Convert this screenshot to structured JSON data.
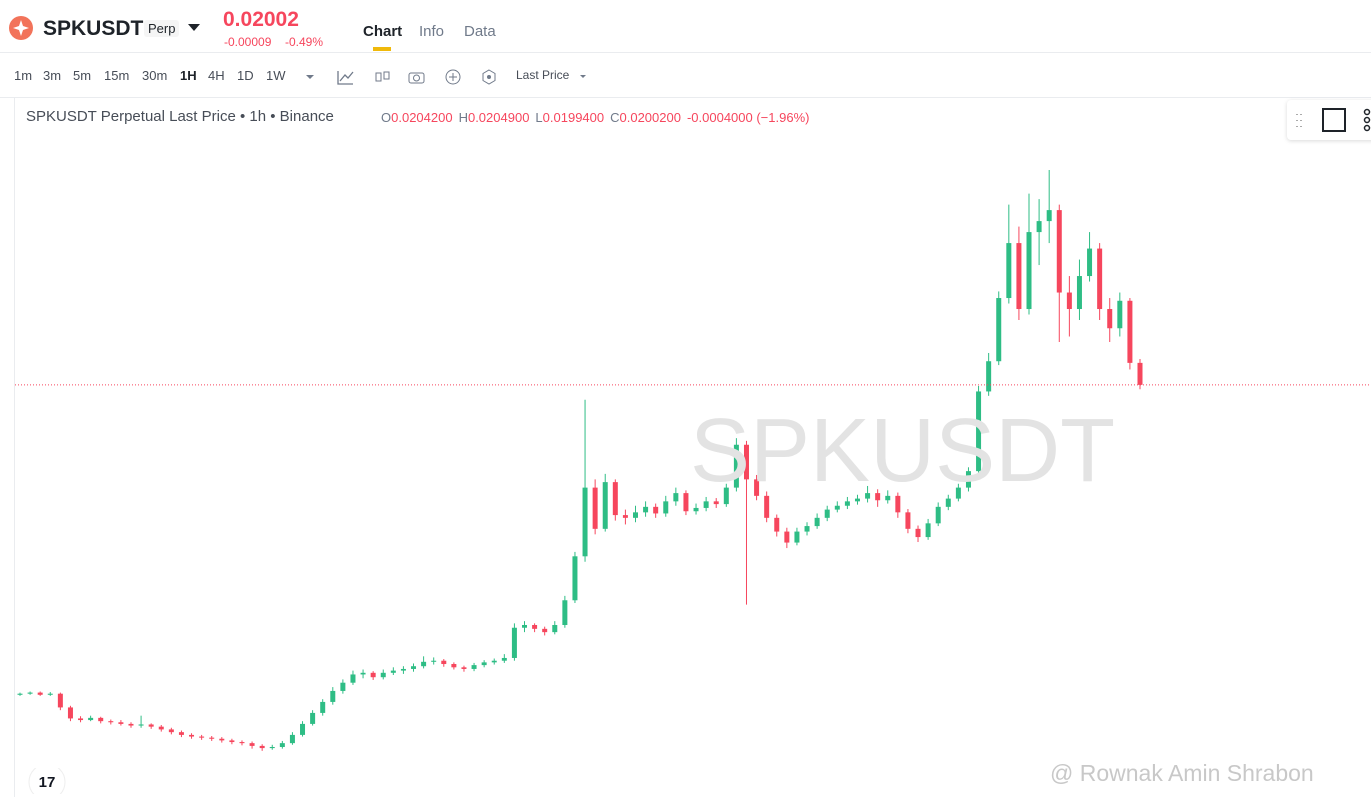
{
  "header": {
    "symbol": "SPKUSDT",
    "badge": "Perp",
    "last_price": "0.02002",
    "change": "-0.00009",
    "change_pct": "-0.49%"
  },
  "tabs": [
    "Chart",
    "Info",
    "Data"
  ],
  "intervals": [
    "1m",
    "3m",
    "5m",
    "15m",
    "30m",
    "1H",
    "4H",
    "1D",
    "1W"
  ],
  "price_type": "Last Price",
  "legend": {
    "title": "SPKUSDT Perpetual Last Price • 1h • Binance",
    "fields": [
      [
        "O",
        "0.0204200"
      ],
      [
        "H",
        "0.0204900"
      ],
      [
        "L",
        "0.0199400"
      ],
      [
        "C",
        "0.0200200"
      ]
    ],
    "change": "-0.0004000 (−1.96%)"
  },
  "watermark": "SPKUSDT",
  "credit": "@ Rownak Amin Shrabon",
  "chart_data": {
    "type": "candlestick",
    "ylim": [
      0.01252,
      0.02524
    ],
    "up_color": "#2ebd85",
    "down_color": "#f6465d",
    "candles": [
      [
        0.01438,
        0.01442,
        0.01436,
        0.0144
      ],
      [
        0.0144,
        0.01444,
        0.01438,
        0.01442
      ],
      [
        0.01442,
        0.01444,
        0.01436,
        0.01438
      ],
      [
        0.01438,
        0.01443,
        0.01436,
        0.0144
      ],
      [
        0.0144,
        0.01442,
        0.0141,
        0.01415
      ],
      [
        0.01415,
        0.01418,
        0.0139,
        0.01395
      ],
      [
        0.01395,
        0.01399,
        0.01388,
        0.01392
      ],
      [
        0.01392,
        0.014,
        0.0139,
        0.01396
      ],
      [
        0.01396,
        0.01398,
        0.01386,
        0.0139
      ],
      [
        0.0139,
        0.01393,
        0.01384,
        0.01388
      ],
      [
        0.01388,
        0.01392,
        0.01382,
        0.01385
      ],
      [
        0.01385,
        0.01388,
        0.01378,
        0.01382
      ],
      [
        0.01382,
        0.014,
        0.01378,
        0.01384
      ],
      [
        0.01384,
        0.01386,
        0.01376,
        0.0138
      ],
      [
        0.0138,
        0.01383,
        0.01371,
        0.01375
      ],
      [
        0.01375,
        0.01378,
        0.01366,
        0.0137
      ],
      [
        0.0137,
        0.01373,
        0.01361,
        0.01365
      ],
      [
        0.01365,
        0.01368,
        0.01358,
        0.01362
      ],
      [
        0.01362,
        0.01365,
        0.01356,
        0.0136
      ],
      [
        0.0136,
        0.01363,
        0.01354,
        0.01358
      ],
      [
        0.01358,
        0.01361,
        0.01351,
        0.01355
      ],
      [
        0.01355,
        0.01358,
        0.01348,
        0.01352
      ],
      [
        0.01352,
        0.01355,
        0.01346,
        0.0135
      ],
      [
        0.0135,
        0.01353,
        0.0134,
        0.01345
      ],
      [
        0.01345,
        0.01348,
        0.01336,
        0.01341
      ],
      [
        0.01341,
        0.01347,
        0.01338,
        0.01343
      ],
      [
        0.01343,
        0.01354,
        0.0134,
        0.0135
      ],
      [
        0.0135,
        0.0137,
        0.01347,
        0.01365
      ],
      [
        0.01365,
        0.0139,
        0.01362,
        0.01385
      ],
      [
        0.01385,
        0.0141,
        0.01382,
        0.01405
      ],
      [
        0.01405,
        0.0143,
        0.014,
        0.01425
      ],
      [
        0.01425,
        0.01452,
        0.0142,
        0.01445
      ],
      [
        0.01445,
        0.01466,
        0.0144,
        0.0146
      ],
      [
        0.0146,
        0.01482,
        0.01456,
        0.01475
      ],
      [
        0.01475,
        0.01484,
        0.01468,
        0.01478
      ],
      [
        0.01478,
        0.01481,
        0.01465,
        0.0147
      ],
      [
        0.0147,
        0.01484,
        0.01466,
        0.01478
      ],
      [
        0.01478,
        0.01488,
        0.01474,
        0.01482
      ],
      [
        0.01482,
        0.0149,
        0.01476,
        0.01485
      ],
      [
        0.01485,
        0.01495,
        0.0148,
        0.0149
      ],
      [
        0.0149,
        0.01508,
        0.01486,
        0.01498
      ],
      [
        0.01498,
        0.01506,
        0.01493,
        0.015
      ],
      [
        0.015,
        0.01503,
        0.01489,
        0.01494
      ],
      [
        0.01494,
        0.01497,
        0.01484,
        0.01488
      ],
      [
        0.01488,
        0.01491,
        0.0148,
        0.01485
      ],
      [
        0.01485,
        0.01496,
        0.01481,
        0.01492
      ],
      [
        0.01492,
        0.01501,
        0.01488,
        0.01497
      ],
      [
        0.01497,
        0.01504,
        0.01493,
        0.015
      ],
      [
        0.015,
        0.01512,
        0.01496,
        0.01505
      ],
      [
        0.01505,
        0.01568,
        0.015,
        0.0156
      ],
      [
        0.0156,
        0.01572,
        0.01552,
        0.01565
      ],
      [
        0.01565,
        0.01568,
        0.01552,
        0.01558
      ],
      [
        0.01558,
        0.01562,
        0.01546,
        0.01552
      ],
      [
        0.01552,
        0.01572,
        0.01548,
        0.01565
      ],
      [
        0.01565,
        0.01618,
        0.0156,
        0.0161
      ],
      [
        0.0161,
        0.01698,
        0.01605,
        0.0169
      ],
      [
        0.0169,
        0.01975,
        0.0168,
        0.01815
      ],
      [
        0.01815,
        0.0183,
        0.0173,
        0.0174
      ],
      [
        0.0174,
        0.0184,
        0.01735,
        0.01825
      ],
      [
        0.01825,
        0.0183,
        0.01755,
        0.01765
      ],
      [
        0.01765,
        0.01775,
        0.01748,
        0.0176
      ],
      [
        0.0176,
        0.01782,
        0.01752,
        0.0177
      ],
      [
        0.0177,
        0.0179,
        0.01762,
        0.0178
      ],
      [
        0.0178,
        0.01786,
        0.0176,
        0.01768
      ],
      [
        0.01768,
        0.018,
        0.01762,
        0.0179
      ],
      [
        0.0179,
        0.01815,
        0.01782,
        0.01805
      ],
      [
        0.01805,
        0.0181,
        0.01765,
        0.01772
      ],
      [
        0.01772,
        0.01786,
        0.01766,
        0.01778
      ],
      [
        0.01778,
        0.01798,
        0.01772,
        0.0179
      ],
      [
        0.0179,
        0.01796,
        0.01778,
        0.01785
      ],
      [
        0.01785,
        0.01822,
        0.0178,
        0.01815
      ],
      [
        0.01815,
        0.01905,
        0.01808,
        0.01893
      ],
      [
        0.01893,
        0.019,
        0.01602,
        0.0183
      ],
      [
        0.0183,
        0.01838,
        0.01792,
        0.018
      ],
      [
        0.018,
        0.01808,
        0.01752,
        0.0176
      ],
      [
        0.0176,
        0.01766,
        0.01726,
        0.01735
      ],
      [
        0.01735,
        0.01742,
        0.01705,
        0.01715
      ],
      [
        0.01715,
        0.01742,
        0.0171,
        0.01735
      ],
      [
        0.01735,
        0.01752,
        0.01728,
        0.01745
      ],
      [
        0.01745,
        0.01768,
        0.0174,
        0.0176
      ],
      [
        0.0176,
        0.01782,
        0.01754,
        0.01775
      ],
      [
        0.01775,
        0.0179,
        0.0177,
        0.01782
      ],
      [
        0.01782,
        0.01798,
        0.01776,
        0.0179
      ],
      [
        0.0179,
        0.01802,
        0.01784,
        0.01795
      ],
      [
        0.01795,
        0.01818,
        0.01788,
        0.01805
      ],
      [
        0.01805,
        0.01812,
        0.0178,
        0.01792
      ],
      [
        0.01792,
        0.0181,
        0.01786,
        0.018
      ],
      [
        0.018,
        0.01806,
        0.0176,
        0.0177
      ],
      [
        0.0177,
        0.01776,
        0.01732,
        0.0174
      ],
      [
        0.0174,
        0.01746,
        0.01716,
        0.01725
      ],
      [
        0.01725,
        0.01758,
        0.0172,
        0.0175
      ],
      [
        0.0175,
        0.01788,
        0.01745,
        0.0178
      ],
      [
        0.0178,
        0.01802,
        0.01774,
        0.01795
      ],
      [
        0.01795,
        0.01822,
        0.0179,
        0.01815
      ],
      [
        0.01815,
        0.01852,
        0.01808,
        0.01845
      ],
      [
        0.01845,
        0.02,
        0.01838,
        0.0199
      ],
      [
        0.0199,
        0.0206,
        0.01982,
        0.02045
      ],
      [
        0.02045,
        0.02172,
        0.02038,
        0.0216
      ],
      [
        0.0216,
        0.0233,
        0.0215,
        0.0226
      ],
      [
        0.0226,
        0.0229,
        0.0212,
        0.0214
      ],
      [
        0.0214,
        0.0235,
        0.0213,
        0.0228
      ],
      [
        0.0228,
        0.0234,
        0.0222,
        0.023
      ],
      [
        0.023,
        0.02393,
        0.0226,
        0.0232
      ],
      [
        0.0232,
        0.0233,
        0.0208,
        0.0217
      ],
      [
        0.0217,
        0.022,
        0.0209,
        0.0214
      ],
      [
        0.0214,
        0.0223,
        0.0212,
        0.022
      ],
      [
        0.022,
        0.0228,
        0.0219,
        0.0225
      ],
      [
        0.0225,
        0.0226,
        0.0212,
        0.0214
      ],
      [
        0.0214,
        0.0216,
        0.0208,
        0.02105
      ],
      [
        0.02105,
        0.0217,
        0.0209,
        0.02155
      ],
      [
        0.02155,
        0.0216,
        0.0203,
        0.02042
      ],
      [
        0.02042,
        0.02049,
        0.01994,
        0.02002
      ]
    ]
  }
}
